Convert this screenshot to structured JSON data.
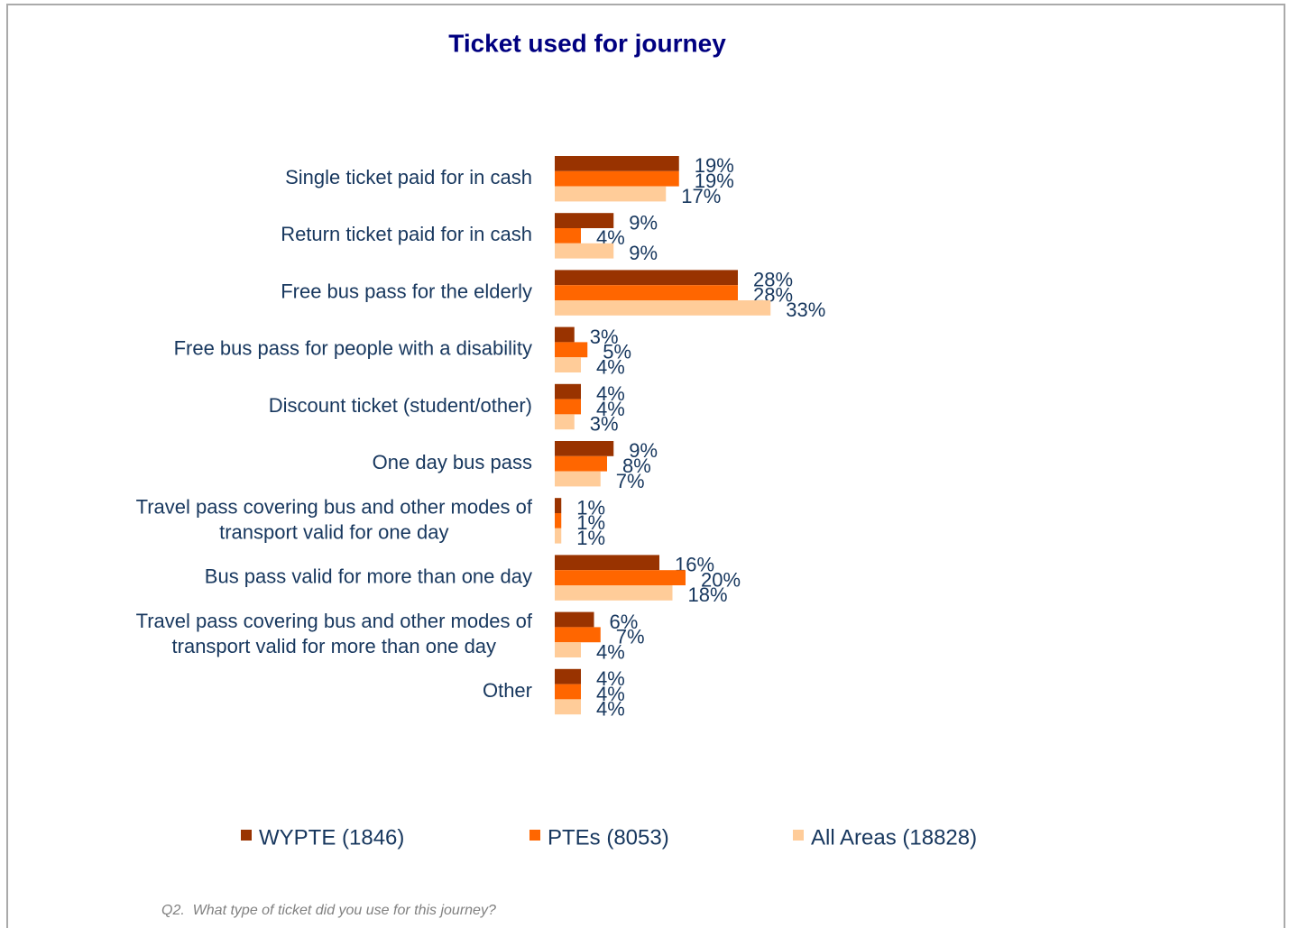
{
  "chart_data": {
    "type": "bar",
    "orientation": "horizontal",
    "title": "Ticket used for journey",
    "categories": [
      "Single ticket paid for in cash",
      "Return ticket paid for in cash",
      "Free bus pass for the elderly",
      "Free bus pass for people with a disability",
      "Discount ticket (student/other)",
      "One day bus pass",
      "Travel pass covering bus and other modes of transport valid for one day",
      "Bus pass valid for more than one day",
      "Travel pass covering bus and other modes of transport valid for more than one day",
      "Other"
    ],
    "series": [
      {
        "name": "WYPTE (1846)",
        "color": "#993300",
        "values": [
          19,
          9,
          28,
          3,
          4,
          9,
          1,
          16,
          6,
          4
        ],
        "value_labels": [
          "19%",
          "9%",
          "28%",
          "3%",
          "4%",
          "9%",
          "1%",
          "16%",
          "6%",
          "4%"
        ]
      },
      {
        "name": "PTEs (8053)",
        "color": "#ff6600",
        "values": [
          19,
          4,
          28,
          5,
          4,
          8,
          1,
          20,
          7,
          4
        ],
        "value_labels": [
          "19%",
          "4%",
          "28%",
          "5%",
          "4%",
          "8%",
          "1%",
          "20%",
          "7%",
          "4%"
        ]
      },
      {
        "name": "All Areas (18828)",
        "color": "#ffcc99",
        "values": [
          17,
          9,
          33,
          4,
          3,
          7,
          1,
          18,
          4,
          4
        ],
        "value_labels": [
          "17%",
          "9%",
          "33%",
          "4%",
          "3%",
          "7%",
          "1%",
          "18%",
          "4%",
          "4%"
        ]
      }
    ],
    "legend": "bottom",
    "footnote": "Q2.  What type of ticket did you use for this journey?"
  }
}
